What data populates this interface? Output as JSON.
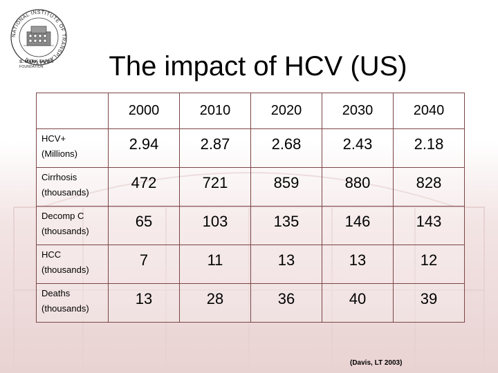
{
  "title": "The impact of HCV (US)",
  "logo": {
    "ring_text": "NATIONAL INSTITUTE OF TRANSPLANTATION",
    "name": "S. MARK TAPER",
    "sub": "FOUNDATION"
  },
  "table": {
    "years": [
      "2000",
      "2010",
      "2020",
      "2030",
      "2040"
    ],
    "rows": [
      {
        "label1": "HCV+",
        "label2": "(Millions)",
        "values": [
          "2.94",
          "2.87",
          "2.68",
          "2.43",
          "2.18"
        ]
      },
      {
        "label1": "Cirrhosis",
        "label2": "(thousands)",
        "values": [
          "472",
          "721",
          "859",
          "880",
          "828"
        ]
      },
      {
        "label1": "Decomp C",
        "label2": "(thousands)",
        "values": [
          "65",
          "103",
          "135",
          "146",
          "143"
        ]
      },
      {
        "label1": "HCC",
        "label2": "(thousands)",
        "values": [
          "7",
          "11",
          "13",
          "13",
          "12"
        ]
      },
      {
        "label1": "Deaths",
        "label2": "(thousands)",
        "values": [
          "13",
          "28",
          "36",
          "40",
          "39"
        ]
      }
    ]
  },
  "citation": "(Davis, LT 2003)"
}
